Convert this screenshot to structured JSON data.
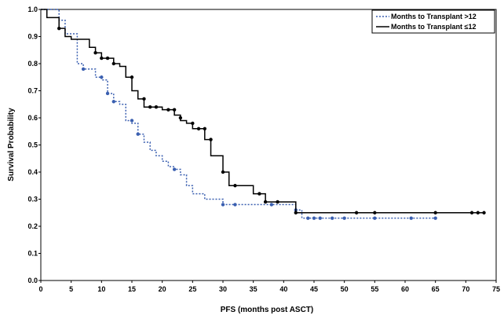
{
  "chart_data": {
    "type": "line",
    "title": "",
    "xlabel": "PFS (months post ASCT)",
    "ylabel": "Survival Probability",
    "xlim": [
      0,
      75
    ],
    "ylim": [
      0.0,
      1.0
    ],
    "x_ticks": [
      0,
      5,
      10,
      15,
      20,
      25,
      30,
      35,
      40,
      45,
      50,
      55,
      60,
      65,
      70,
      75
    ],
    "y_ticks": [
      "0.0",
      "0.1",
      "0.2",
      "0.3",
      "0.4",
      "0.5",
      "0.6",
      "0.7",
      "0.8",
      "0.9",
      "1.0"
    ],
    "grid": false,
    "legend_position": "top-right",
    "step": true,
    "series": [
      {
        "name": "Months to Transplant >12",
        "color": "#3a5fb0",
        "style": "dotted",
        "points": [
          [
            0,
            1.0
          ],
          [
            3,
            0.96
          ],
          [
            4,
            0.91
          ],
          [
            6,
            0.8
          ],
          [
            7,
            0.78
          ],
          [
            9,
            0.75
          ],
          [
            10,
            0.74
          ],
          [
            11,
            0.69
          ],
          [
            12,
            0.66
          ],
          [
            13,
            0.65
          ],
          [
            14,
            0.59
          ],
          [
            15,
            0.58
          ],
          [
            16,
            0.54
          ],
          [
            17,
            0.51
          ],
          [
            18,
            0.48
          ],
          [
            19,
            0.46
          ],
          [
            20,
            0.44
          ],
          [
            21,
            0.42
          ],
          [
            22,
            0.41
          ],
          [
            23,
            0.39
          ],
          [
            24,
            0.35
          ],
          [
            25,
            0.32
          ],
          [
            27,
            0.3
          ],
          [
            30,
            0.28
          ],
          [
            42,
            0.26
          ],
          [
            43,
            0.23
          ],
          [
            65,
            0.23
          ]
        ],
        "censored": [
          [
            7,
            0.78
          ],
          [
            10,
            0.75
          ],
          [
            11,
            0.69
          ],
          [
            12,
            0.66
          ],
          [
            15,
            0.59
          ],
          [
            16,
            0.54
          ],
          [
            22,
            0.41
          ],
          [
            30,
            0.28
          ],
          [
            32,
            0.28
          ],
          [
            38,
            0.28
          ],
          [
            42,
            0.26
          ],
          [
            44,
            0.23
          ],
          [
            45,
            0.23
          ],
          [
            46,
            0.23
          ],
          [
            48,
            0.23
          ],
          [
            50,
            0.23
          ],
          [
            55,
            0.23
          ],
          [
            61,
            0.23
          ],
          [
            65,
            0.23
          ]
        ]
      },
      {
        "name": "Months to Transplant ≤12",
        "color": "#000000",
        "style": "solid",
        "points": [
          [
            0,
            1.0
          ],
          [
            1,
            0.97
          ],
          [
            3,
            0.93
          ],
          [
            4,
            0.9
          ],
          [
            5,
            0.89
          ],
          [
            8,
            0.86
          ],
          [
            9,
            0.84
          ],
          [
            10,
            0.82
          ],
          [
            12,
            0.8
          ],
          [
            13,
            0.79
          ],
          [
            14,
            0.75
          ],
          [
            15,
            0.7
          ],
          [
            16,
            0.67
          ],
          [
            17,
            0.64
          ],
          [
            20,
            0.63
          ],
          [
            22,
            0.61
          ],
          [
            23,
            0.59
          ],
          [
            24,
            0.58
          ],
          [
            25,
            0.56
          ],
          [
            27,
            0.52
          ],
          [
            28,
            0.46
          ],
          [
            30,
            0.4
          ],
          [
            31,
            0.35
          ],
          [
            35,
            0.32
          ],
          [
            37,
            0.29
          ],
          [
            42,
            0.25
          ],
          [
            73,
            0.25
          ]
        ],
        "censored": [
          [
            3,
            0.93
          ],
          [
            9,
            0.84
          ],
          [
            10,
            0.82
          ],
          [
            11,
            0.82
          ],
          [
            12,
            0.8
          ],
          [
            15,
            0.75
          ],
          [
            17,
            0.67
          ],
          [
            18,
            0.64
          ],
          [
            19,
            0.64
          ],
          [
            21,
            0.63
          ],
          [
            22,
            0.63
          ],
          [
            23,
            0.6
          ],
          [
            25,
            0.58
          ],
          [
            26,
            0.56
          ],
          [
            27,
            0.56
          ],
          [
            28,
            0.52
          ],
          [
            30,
            0.4
          ],
          [
            32,
            0.35
          ],
          [
            36,
            0.32
          ],
          [
            37,
            0.29
          ],
          [
            39,
            0.29
          ],
          [
            42,
            0.25
          ],
          [
            52,
            0.25
          ],
          [
            55,
            0.25
          ],
          [
            65,
            0.25
          ],
          [
            71,
            0.25
          ],
          [
            72,
            0.25
          ],
          [
            73,
            0.25
          ]
        ]
      }
    ]
  }
}
